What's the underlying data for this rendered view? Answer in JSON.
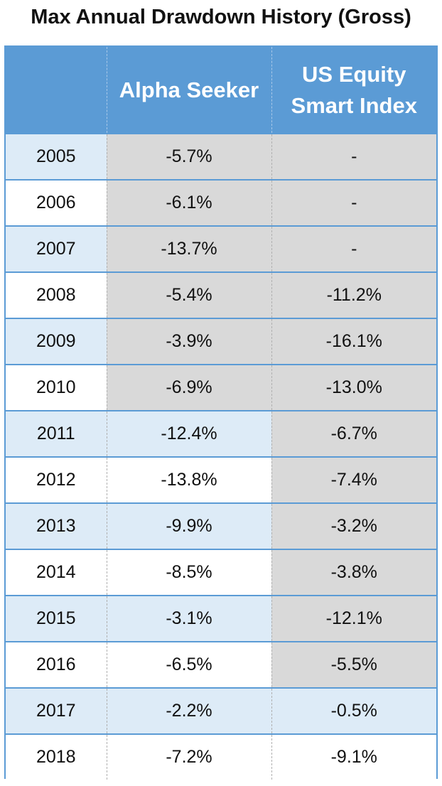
{
  "title": "Max Annual Drawdown History (Gross)",
  "chart_data": {
    "type": "table",
    "title": "Max Annual Drawdown History (Gross)",
    "columns": [
      "",
      "Alpha Seeker",
      "US Equity Smart Index"
    ],
    "rows": [
      {
        "year": "2005",
        "alpha": "-5.7%",
        "index": "-",
        "alpha_grey": true,
        "index_grey": true
      },
      {
        "year": "2006",
        "alpha": "-6.1%",
        "index": "-",
        "alpha_grey": true,
        "index_grey": true
      },
      {
        "year": "2007",
        "alpha": "-13.7%",
        "index": "-",
        "alpha_grey": true,
        "index_grey": true
      },
      {
        "year": "2008",
        "alpha": "-5.4%",
        "index": "-11.2%",
        "alpha_grey": true,
        "index_grey": true
      },
      {
        "year": "2009",
        "alpha": "-3.9%",
        "index": "-16.1%",
        "alpha_grey": true,
        "index_grey": true
      },
      {
        "year": "2010",
        "alpha": "-6.9%",
        "index": "-13.0%",
        "alpha_grey": true,
        "index_grey": true
      },
      {
        "year": "2011",
        "alpha": "-12.4%",
        "index": "-6.7%",
        "alpha_grey": false,
        "index_grey": true
      },
      {
        "year": "2012",
        "alpha": "-13.8%",
        "index": "-7.4%",
        "alpha_grey": false,
        "index_grey": true
      },
      {
        "year": "2013",
        "alpha": "-9.9%",
        "index": "-3.2%",
        "alpha_grey": false,
        "index_grey": true
      },
      {
        "year": "2014",
        "alpha": "-8.5%",
        "index": "-3.8%",
        "alpha_grey": false,
        "index_grey": true
      },
      {
        "year": "2015",
        "alpha": "-3.1%",
        "index": "-12.1%",
        "alpha_grey": false,
        "index_grey": true
      },
      {
        "year": "2016",
        "alpha": "-6.5%",
        "index": "-5.5%",
        "alpha_grey": false,
        "index_grey": true
      },
      {
        "year": "2017",
        "alpha": "-2.2%",
        "index": "-0.5%",
        "alpha_grey": false,
        "index_grey": false
      },
      {
        "year": "2018",
        "alpha": "-7.2%",
        "index": "-9.1%",
        "alpha_grey": false,
        "index_grey": false
      }
    ]
  },
  "colors": {
    "header": "#5b9bd5",
    "band_light": "#ddebf7",
    "band_white": "#ffffff",
    "grey_cell": "#d9d9d9"
  }
}
